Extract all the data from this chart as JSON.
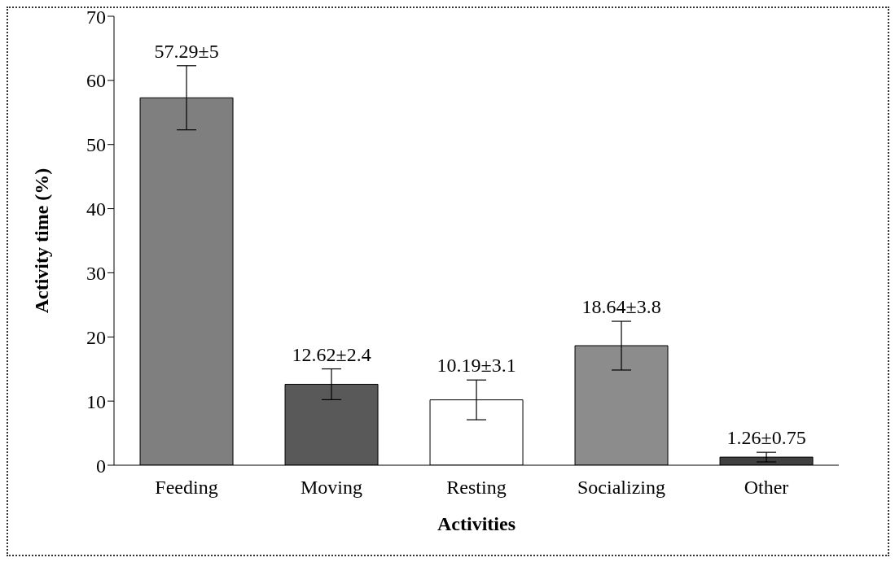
{
  "chart_data": {
    "type": "bar",
    "xlabel": "Activities",
    "ylabel": "Activity time (%)",
    "categories": [
      "Feeding",
      "Moving",
      "Resting",
      "Socializing",
      "Other"
    ],
    "values": [
      57.29,
      12.62,
      10.19,
      18.64,
      1.26
    ],
    "errors": [
      5,
      2.4,
      3.1,
      3.8,
      0.75
    ],
    "value_labels": [
      "57.29±5",
      "12.62±2.4",
      "10.19±3.1",
      "18.64±3.8",
      "1.26±0.75"
    ],
    "colors": [
      "#7f7f7f",
      "#595959",
      "#ffffff",
      "#8c8c8c",
      "#404040"
    ],
    "ylim": [
      0,
      70
    ],
    "yticks": [
      0,
      10,
      20,
      30,
      40,
      50,
      60,
      70
    ],
    "grid": false,
    "legend": false
  }
}
